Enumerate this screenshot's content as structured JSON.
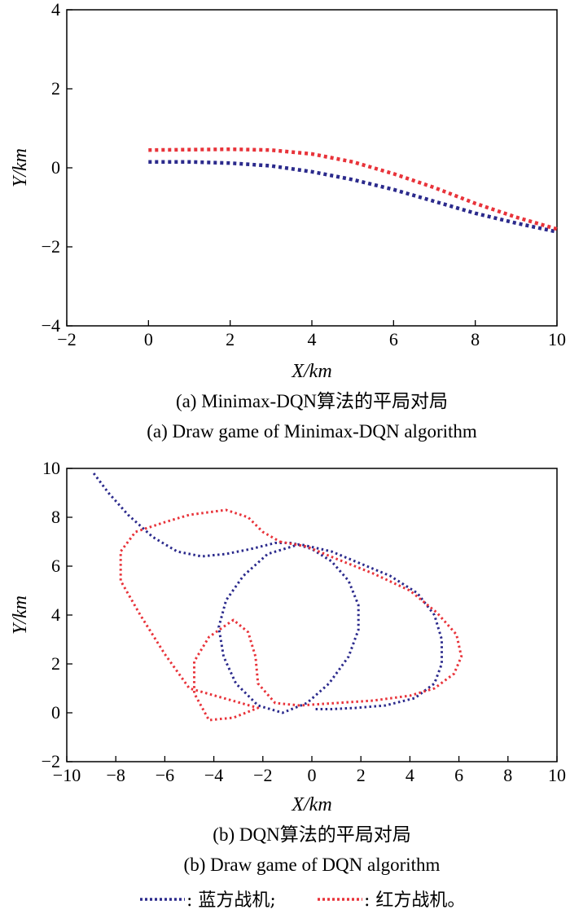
{
  "chart_data": [
    {
      "type": "scatter",
      "xlabel": "X/km",
      "ylabel": "Y/km",
      "xlim": [
        -2,
        10
      ],
      "ylim": [
        -4,
        4
      ],
      "xticks": [
        -2,
        0,
        2,
        4,
        6,
        8,
        10
      ],
      "yticks": [
        -4,
        -2,
        0,
        2,
        4
      ],
      "caption_cn": "(a) Minimax-DQN算法的平局对局",
      "caption_en": "(a) Draw game of Minimax-DQN algorithm",
      "series": [
        {
          "color": "#2b2a8c",
          "points": [
            [
              0,
              0.15
            ],
            [
              1,
              0.15
            ],
            [
              2,
              0.12
            ],
            [
              3,
              0.05
            ],
            [
              4,
              -0.1
            ],
            [
              5,
              -0.3
            ],
            [
              6,
              -0.55
            ],
            [
              7,
              -0.85
            ],
            [
              8,
              -1.15
            ],
            [
              9,
              -1.4
            ],
            [
              10,
              -1.62
            ]
          ]
        },
        {
          "color": "#e8333a",
          "points": [
            [
              0,
              0.45
            ],
            [
              1,
              0.46
            ],
            [
              2,
              0.47
            ],
            [
              3,
              0.45
            ],
            [
              4,
              0.35
            ],
            [
              5,
              0.15
            ],
            [
              6,
              -0.15
            ],
            [
              7,
              -0.5
            ],
            [
              8,
              -0.9
            ],
            [
              9,
              -1.25
            ],
            [
              10,
              -1.55
            ]
          ]
        }
      ]
    },
    {
      "type": "scatter",
      "xlabel": "X/km",
      "ylabel": "Y/km",
      "xlim": [
        -10,
        10
      ],
      "ylim": [
        -2,
        10
      ],
      "xticks": [
        -10,
        -8,
        -6,
        -4,
        -2,
        0,
        2,
        4,
        6,
        8,
        10
      ],
      "yticks": [
        -2,
        0,
        2,
        4,
        6,
        8,
        10
      ],
      "caption_cn": "(b) DQN算法的平局对局",
      "caption_en": "(b) Draw game of  DQN algorithm",
      "series": [
        {
          "color": "#2b2a8c",
          "points": [
            [
              -8.9,
              9.8
            ],
            [
              -8.3,
              9.0
            ],
            [
              -7.5,
              8.1
            ],
            [
              -6.5,
              7.2
            ],
            [
              -5.5,
              6.6
            ],
            [
              -4.5,
              6.4
            ],
            [
              -3.5,
              6.5
            ],
            [
              -2.5,
              6.7
            ],
            [
              -1.5,
              6.95
            ],
            [
              -0.8,
              6.95
            ],
            [
              0,
              6.7
            ],
            [
              0.8,
              6.2
            ],
            [
              1.5,
              5.4
            ],
            [
              1.9,
              4.4
            ],
            [
              1.9,
              3.4
            ],
            [
              1.5,
              2.3
            ],
            [
              0.7,
              1.2
            ],
            [
              -0.2,
              0.4
            ],
            [
              -1.2,
              0.0
            ],
            [
              -2.2,
              0.3
            ],
            [
              -3.1,
              1.2
            ],
            [
              -3.6,
              2.3
            ],
            [
              -3.8,
              3.5
            ],
            [
              -3.5,
              4.6
            ],
            [
              -2.8,
              5.6
            ],
            [
              -1.8,
              6.5
            ],
            [
              -0.5,
              6.9
            ],
            [
              0.8,
              6.6
            ],
            [
              2.0,
              6.1
            ],
            [
              3.2,
              5.6
            ],
            [
              4.3,
              4.9
            ],
            [
              5.0,
              4.0
            ],
            [
              5.3,
              3.0
            ],
            [
              5.3,
              2.0
            ],
            [
              5.0,
              1.2
            ],
            [
              4.2,
              0.6
            ],
            [
              3.0,
              0.3
            ],
            [
              1.8,
              0.2
            ],
            [
              0.8,
              0.15
            ],
            [
              0.1,
              0.15
            ]
          ]
        },
        {
          "color": "#e8333a",
          "points": [
            [
              -1.3,
              7.0
            ],
            [
              -0.2,
              6.8
            ],
            [
              1.0,
              6.3
            ],
            [
              2.5,
              5.7
            ],
            [
              4.0,
              5.0
            ],
            [
              5.1,
              4.1
            ],
            [
              5.9,
              3.2
            ],
            [
              6.1,
              2.3
            ],
            [
              5.8,
              1.6
            ],
            [
              5.0,
              1.0
            ],
            [
              4.0,
              0.7
            ],
            [
              2.5,
              0.5
            ],
            [
              1.0,
              0.4
            ],
            [
              -0.5,
              0.3
            ],
            [
              -1.5,
              0.4
            ],
            [
              -2.2,
              1.2
            ],
            [
              -2.3,
              2.3
            ],
            [
              -2.6,
              3.3
            ],
            [
              -3.2,
              3.8
            ],
            [
              -4.2,
              3.1
            ],
            [
              -4.8,
              2.1
            ],
            [
              -4.8,
              0.8
            ],
            [
              -4.2,
              -0.3
            ],
            [
              -3.2,
              -0.2
            ],
            [
              -2.2,
              0.2
            ],
            [
              -5.0,
              1.0
            ],
            [
              -6.0,
              2.4
            ],
            [
              -7.0,
              4.0
            ],
            [
              -7.8,
              5.4
            ],
            [
              -7.8,
              6.6
            ],
            [
              -7.2,
              7.4
            ],
            [
              -6.0,
              7.8
            ],
            [
              -5.0,
              8.1
            ],
            [
              -3.5,
              8.3
            ],
            [
              -2.6,
              8.0
            ],
            [
              -2.0,
              7.4
            ],
            [
              -1.3,
              7.0
            ]
          ]
        }
      ]
    }
  ],
  "legend": {
    "blue_label": "蓝方战机;",
    "red_label": "红方战机。"
  }
}
